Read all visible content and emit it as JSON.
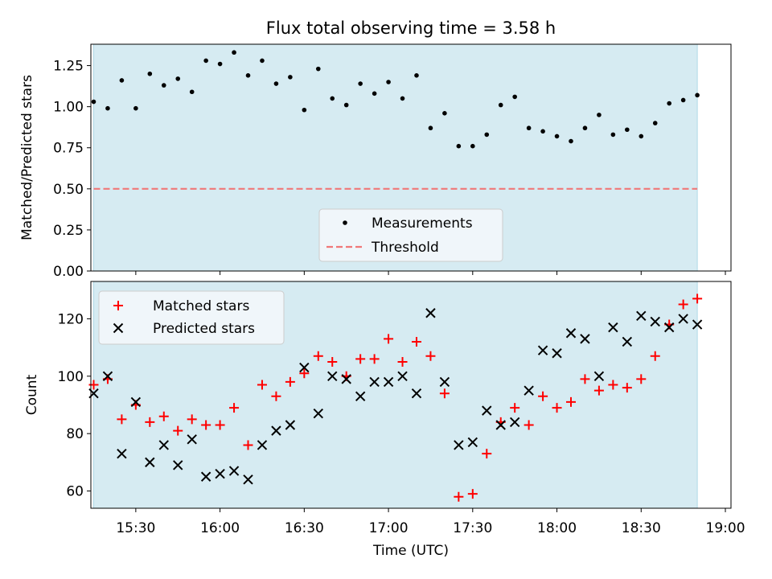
{
  "chart_data": [
    {
      "type": "scatter",
      "title": "Flux total observing time = 3.58 h",
      "xlabel": "",
      "ylabel": "Matched/Predicted stars",
      "xlim": [
        "15:14",
        "19:02"
      ],
      "ylim": [
        0,
        1.38
      ],
      "yticks": [
        "0.00",
        "0.25",
        "0.50",
        "0.75",
        "1.00",
        "1.25"
      ],
      "shaded_span": [
        "15:15",
        "18:50"
      ],
      "grid": false,
      "legend": "bottom-center",
      "series": [
        {
          "name": "Measurements",
          "marker": "dot",
          "color": "#000000",
          "x": [
            "15:15",
            "15:20",
            "15:25",
            "15:30",
            "15:35",
            "15:40",
            "15:45",
            "15:50",
            "15:55",
            "16:00",
            "16:05",
            "16:10",
            "16:15",
            "16:20",
            "16:25",
            "16:30",
            "16:35",
            "16:40",
            "16:45",
            "16:50",
            "16:55",
            "17:00",
            "17:05",
            "17:10",
            "17:15",
            "17:20",
            "17:25",
            "17:30",
            "17:35",
            "17:40",
            "17:45",
            "17:50",
            "17:55",
            "18:00",
            "18:05",
            "18:10",
            "18:15",
            "18:20",
            "18:25",
            "18:30",
            "18:35",
            "18:40",
            "18:45",
            "18:50"
          ],
          "y": [
            1.03,
            0.99,
            1.16,
            0.99,
            1.2,
            1.13,
            1.17,
            1.09,
            1.28,
            1.26,
            1.33,
            1.19,
            1.28,
            1.14,
            1.18,
            0.98,
            1.23,
            1.05,
            1.01,
            1.14,
            1.08,
            1.15,
            1.05,
            1.19,
            0.87,
            0.96,
            0.76,
            0.76,
            0.83,
            1.01,
            1.06,
            0.87,
            0.85,
            0.82,
            0.79,
            0.87,
            0.95,
            0.83,
            0.86,
            0.82,
            0.9,
            1.02,
            1.04,
            1.07
          ]
        },
        {
          "name": "Threshold",
          "marker": "dashed-line",
          "color": "#f07878",
          "y_constant": 0.5
        }
      ]
    },
    {
      "type": "scatter",
      "xlabel": "Time (UTC)",
      "ylabel": "Count",
      "xlim": [
        "15:14",
        "19:02"
      ],
      "ylim": [
        54,
        133
      ],
      "yticks": [
        "60",
        "80",
        "100",
        "120"
      ],
      "xticks": [
        "15:30",
        "16:00",
        "16:30",
        "17:00",
        "17:30",
        "18:00",
        "18:30",
        "19:00"
      ],
      "shaded_span": [
        "15:15",
        "18:50"
      ],
      "grid": false,
      "legend": "top-left",
      "x": [
        "15:15",
        "15:20",
        "15:25",
        "15:30",
        "15:35",
        "15:40",
        "15:45",
        "15:50",
        "15:55",
        "16:00",
        "16:05",
        "16:10",
        "16:15",
        "16:20",
        "16:25",
        "16:30",
        "16:35",
        "16:40",
        "16:45",
        "16:50",
        "16:55",
        "17:00",
        "17:05",
        "17:10",
        "17:15",
        "17:20",
        "17:25",
        "17:30",
        "17:35",
        "17:40",
        "17:45",
        "17:50",
        "17:55",
        "18:00",
        "18:05",
        "18:10",
        "18:15",
        "18:20",
        "18:25",
        "18:30",
        "18:35",
        "18:40",
        "18:45",
        "18:50"
      ],
      "series": [
        {
          "name": "Matched stars",
          "marker": "plus",
          "color": "#ff0000",
          "values": [
            97,
            99,
            85,
            90,
            84,
            86,
            81,
            85,
            83,
            83,
            89,
            76,
            97,
            93,
            98,
            101,
            107,
            105,
            100,
            106,
            106,
            113,
            105,
            112,
            107,
            94,
            58,
            59,
            73,
            84,
            89,
            83,
            93,
            89,
            91,
            99,
            95,
            97,
            96,
            99,
            107,
            118,
            125,
            127
          ]
        },
        {
          "name": "Predicted stars",
          "marker": "x",
          "color": "#000000",
          "values": [
            94,
            100,
            73,
            91,
            70,
            76,
            69,
            78,
            65,
            66,
            67,
            64,
            76,
            81,
            83,
            103,
            87,
            100,
            99,
            93,
            98,
            98,
            100,
            94,
            122,
            98,
            76,
            77,
            88,
            83,
            84,
            95,
            109,
            108,
            115,
            113,
            100,
            117,
            112,
            121,
            119,
            117,
            120,
            118
          ]
        }
      ]
    }
  ],
  "colors": {
    "span_fill": "#add8e6",
    "legend_bg": "#f5f8fb"
  }
}
